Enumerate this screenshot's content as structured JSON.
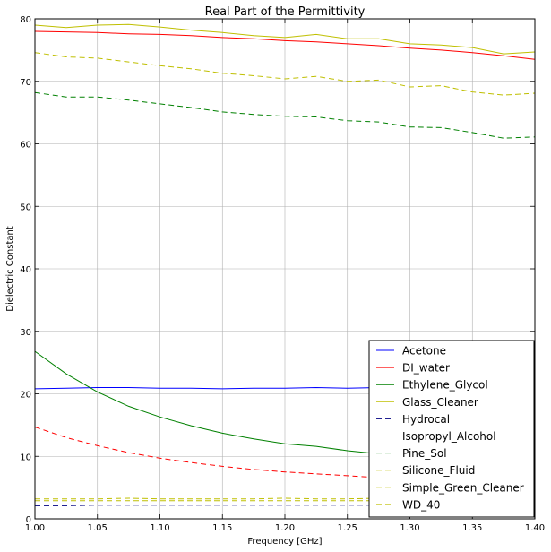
{
  "chart_data": {
    "type": "line",
    "title": "Real Part of the Permittivity",
    "xlabel": "Frequency [GHz]",
    "ylabel": "Dielectric Constant",
    "xlim": [
      1.0,
      1.4
    ],
    "ylim": [
      0,
      80
    ],
    "xticks": [
      "1.00",
      "1.05",
      "1.10",
      "1.15",
      "1.20",
      "1.25",
      "1.30",
      "1.35",
      "1.40"
    ],
    "yticks": [
      "0",
      "10",
      "20",
      "30",
      "40",
      "50",
      "60",
      "70",
      "80"
    ],
    "grid": true,
    "legend_position": "lower-right",
    "x": [
      1.0,
      1.025,
      1.05,
      1.075,
      1.1,
      1.125,
      1.15,
      1.175,
      1.2,
      1.225,
      1.25,
      1.275,
      1.3,
      1.325,
      1.35,
      1.375,
      1.4
    ],
    "series": [
      {
        "name": "Acetone",
        "color": "#0000ff",
        "style": "solid",
        "values": [
          20.8,
          20.9,
          21.0,
          21.0,
          20.9,
          20.9,
          20.8,
          20.9,
          20.9,
          21.0,
          20.9,
          21.0,
          21.0,
          21.0,
          21.0,
          21.1,
          21.1
        ]
      },
      {
        "name": "DI_water",
        "color": "#ff0000",
        "style": "solid",
        "values": [
          78.0,
          77.9,
          77.8,
          77.6,
          77.5,
          77.3,
          77.0,
          76.8,
          76.5,
          76.3,
          76.0,
          75.7,
          75.3,
          75.0,
          74.6,
          74.1,
          73.5
        ]
      },
      {
        "name": "Ethylene_Glycol",
        "color": "#008000",
        "style": "solid",
        "values": [
          26.8,
          23.2,
          20.3,
          18.0,
          16.3,
          14.9,
          13.7,
          12.8,
          12.0,
          11.6,
          10.9,
          10.4,
          10.0,
          9.7,
          9.4,
          9.2,
          9.0
        ]
      },
      {
        "name": "Glass_Cleaner",
        "color": "#bfbf00",
        "style": "solid",
        "values": [
          79.0,
          78.6,
          79.0,
          79.1,
          78.7,
          78.2,
          77.8,
          77.3,
          77.0,
          77.5,
          76.8,
          76.8,
          76.0,
          75.8,
          75.4,
          74.4,
          74.7
        ]
      },
      {
        "name": "Hydrocal",
        "color": "#000080",
        "style": "dashed",
        "values": [
          2.1,
          2.1,
          2.2,
          2.2,
          2.2,
          2.2,
          2.2,
          2.2,
          2.2,
          2.2,
          2.2,
          2.2,
          2.2,
          2.2,
          2.2,
          2.2,
          2.2
        ]
      },
      {
        "name": "Isopropyl_Alcohol",
        "color": "#ff0000",
        "style": "dashed",
        "values": [
          14.7,
          13.0,
          11.7,
          10.6,
          9.7,
          9.0,
          8.4,
          7.9,
          7.5,
          7.2,
          6.9,
          6.6,
          6.3,
          6.1,
          5.9,
          5.8,
          5.6
        ]
      },
      {
        "name": "Pine_Sol",
        "color": "#008000",
        "style": "dashed",
        "values": [
          68.2,
          67.5,
          67.5,
          67.0,
          66.4,
          65.8,
          65.1,
          64.7,
          64.4,
          64.3,
          63.7,
          63.5,
          62.7,
          62.6,
          61.8,
          60.9,
          61.1
        ]
      },
      {
        "name": "Silicone_Fluid",
        "color": "#bfbf00",
        "style": "dashed",
        "values": [
          2.9,
          2.9,
          2.9,
          2.9,
          2.9,
          2.9,
          2.9,
          2.9,
          2.9,
          2.9,
          2.9,
          2.9,
          2.9,
          2.9,
          2.9,
          2.9,
          2.9
        ]
      },
      {
        "name": "Simple_Green_Cleaner",
        "color": "#bfbf00",
        "style": "dashed",
        "values": [
          74.6,
          73.9,
          73.7,
          73.1,
          72.5,
          72.0,
          71.3,
          70.9,
          70.4,
          70.8,
          70.0,
          70.2,
          69.1,
          69.3,
          68.3,
          67.8,
          68.1
        ]
      },
      {
        "name": "WD_40",
        "color": "#bfbf00",
        "style": "dashed",
        "values": [
          3.2,
          3.2,
          3.2,
          3.3,
          3.2,
          3.2,
          3.2,
          3.2,
          3.3,
          3.2,
          3.2,
          3.3,
          3.2,
          3.3,
          3.3,
          3.3,
          3.3
        ]
      }
    ]
  }
}
